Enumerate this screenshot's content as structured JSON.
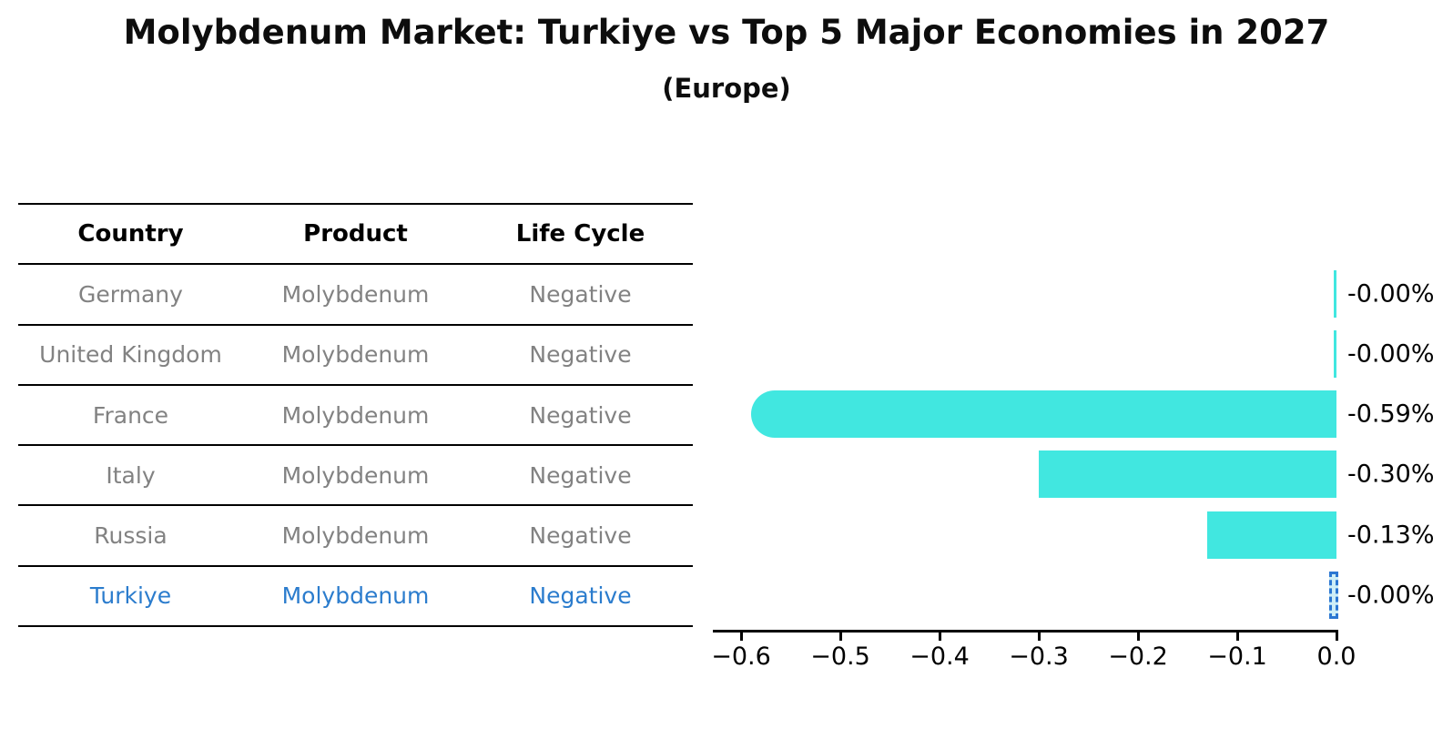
{
  "header": {
    "title": "Molybdenum Market: Turkiye vs Top 5 Major Economies in 2027",
    "subtitle": "(Europe)"
  },
  "table": {
    "headers": [
      "Country",
      "Product",
      "Life Cycle"
    ],
    "rows": [
      {
        "country": "Germany",
        "product": "Molybdenum",
        "life_cycle": "Negative",
        "highlight": false
      },
      {
        "country": "United Kingdom",
        "product": "Molybdenum",
        "life_cycle": "Negative",
        "highlight": false
      },
      {
        "country": "France",
        "product": "Molybdenum",
        "life_cycle": "Negative",
        "highlight": false
      },
      {
        "country": "Italy",
        "product": "Molybdenum",
        "life_cycle": "Negative",
        "highlight": false
      },
      {
        "country": "Russia",
        "product": "Molybdenum",
        "life_cycle": "Negative",
        "highlight": false
      },
      {
        "country": "Turkiye",
        "product": "Molybdenum",
        "life_cycle": "Negative",
        "highlight": true
      }
    ]
  },
  "chart_data": {
    "type": "bar",
    "orientation": "horizontal",
    "title": "Molybdenum Market: Turkiye vs Top 5 Major Economies in 2027",
    "subtitle": "(Europe)",
    "categories": [
      "Germany",
      "United Kingdom",
      "France",
      "Italy",
      "Russia",
      "Turkiye"
    ],
    "values": [
      -0.0,
      -0.0,
      -0.59,
      -0.3,
      -0.13,
      -0.0
    ],
    "value_labels": [
      "-0.00%",
      "-0.00%",
      "-0.59%",
      "-0.30%",
      "-0.13%",
      "-0.00%"
    ],
    "highlight_index": 5,
    "xlim": [
      -0.63,
      0.0
    ],
    "x_tick_values": [
      -0.6,
      -0.5,
      -0.4,
      -0.3,
      -0.2,
      -0.1,
      0.0
    ],
    "x_tick_labels": [
      "−0.6",
      "−0.5",
      "−0.4",
      "−0.3",
      "−0.2",
      "−0.1",
      "0.0"
    ],
    "grid": false,
    "legend": "none",
    "bar_color": "#41e7e0",
    "highlight_edge_color": "#2b77d2",
    "highlight_fill_color": "#cdeef7",
    "label_color": "#000000",
    "row_text_color": "#828282",
    "highlight_text_color": "#2b7ccd"
  }
}
